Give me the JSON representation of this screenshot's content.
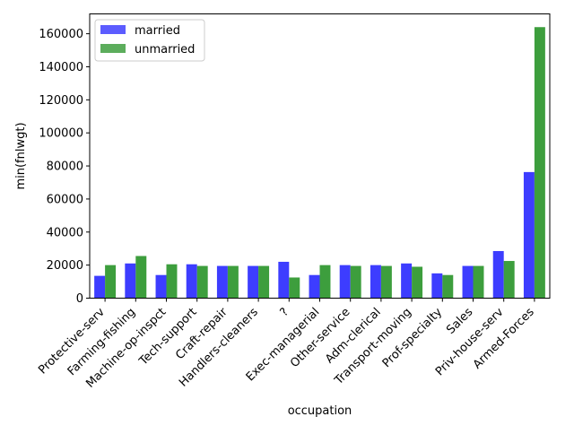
{
  "chart_data": {
    "type": "bar",
    "xlabel": "occupation",
    "ylabel": "min(fnlwgt)",
    "ylim": [
      0,
      172000
    ],
    "yticks": [
      0,
      20000,
      40000,
      60000,
      80000,
      100000,
      120000,
      140000,
      160000
    ],
    "grid": false,
    "legend_position": "top-left",
    "categories": [
      "Protective-serv",
      "Farming-fishing",
      "Machine-op-inspct",
      "Tech-support",
      "Craft-repair",
      "Handlers-cleaners",
      "?",
      "Exec-managerial",
      "Other-service",
      "Adm-clerical",
      "Transport-moving",
      "Prof-specialty",
      "Sales",
      "Priv-house-serv",
      "Armed-Forces"
    ],
    "series": [
      {
        "name": "married",
        "color": "#3333ff",
        "values": [
          13500,
          21000,
          14000,
          20500,
          19500,
          19500,
          22000,
          14000,
          20000,
          20000,
          21000,
          15000,
          19500,
          28500,
          76300
        ]
      },
      {
        "name": "unmarried",
        "color": "#339933",
        "values": [
          20000,
          25500,
          20500,
          19500,
          19500,
          19500,
          12500,
          20000,
          19500,
          19500,
          19000,
          14000,
          19500,
          22500,
          164000
        ]
      }
    ]
  }
}
